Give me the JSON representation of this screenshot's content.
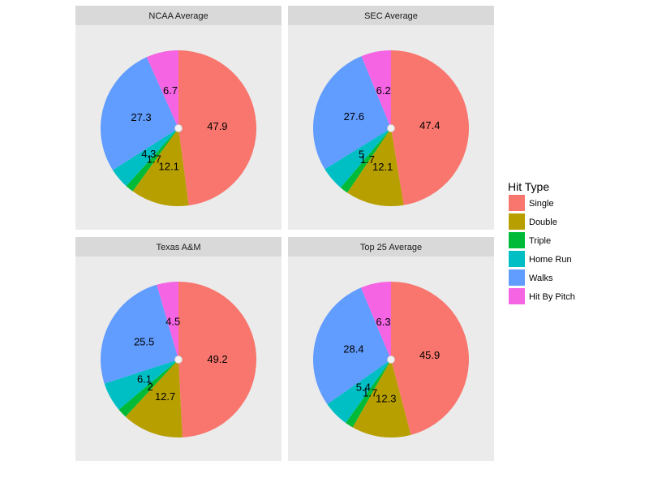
{
  "chart_data": {
    "type": "pie",
    "categories": [
      "Single",
      "Double",
      "Triple",
      "Home Run",
      "Walks",
      "Hit By Pitch"
    ],
    "colors": [
      "#F8766D",
      "#B79F00",
      "#00BA38",
      "#00BFC4",
      "#619CFF",
      "#F564E3"
    ],
    "legend": {
      "title": "Hit Type",
      "position": "right"
    },
    "facets": [
      {
        "title": "NCAA Average",
        "values": [
          47.9,
          12.1,
          1.7,
          4.3,
          27.3,
          6.7
        ],
        "labels": [
          "47.9",
          "12.1",
          "1.7",
          "4.3",
          "27.3",
          "6.7"
        ]
      },
      {
        "title": "SEC Average",
        "values": [
          47.4,
          12.1,
          1.7,
          5,
          27.6,
          6.2
        ],
        "labels": [
          "47.4",
          "12.1",
          "1.7",
          "5",
          "27.6",
          "6.2"
        ]
      },
      {
        "title": "Texas A&M",
        "values": [
          49.2,
          12.7,
          2,
          6.1,
          25.5,
          4.5
        ],
        "labels": [
          "49.2",
          "12.7",
          "2",
          "6.1",
          "25.5",
          "4.5"
        ]
      },
      {
        "title": "Top 25 Average",
        "values": [
          45.9,
          12.3,
          1.7,
          5.4,
          28.4,
          6.3
        ],
        "labels": [
          "45.9",
          "12.3",
          "1.7",
          "5.4",
          "28.4",
          "6.3"
        ]
      }
    ]
  }
}
